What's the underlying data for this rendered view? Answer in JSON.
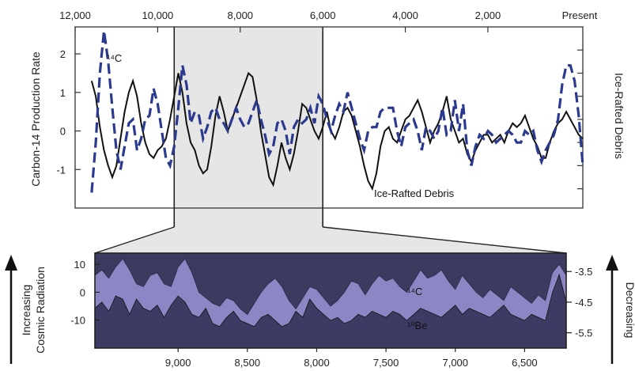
{
  "chart_data": [
    {
      "type": "line",
      "xlabel": "",
      "ylabel": "Carbon-14 Production Rate",
      "ylabel_right": "Ice-Rafted Debris",
      "x_ticks": [
        12000,
        10000,
        8000,
        6000,
        4000,
        2000
      ],
      "x_tick_labels": [
        "12,000",
        "10,000",
        "8,000",
        "6,000",
        "4,000",
        "2,000"
      ],
      "x_end_label": "Present",
      "x_range": [
        12000,
        -300
      ],
      "y_ticks": [
        2,
        1,
        0,
        -1
      ],
      "y_tick_labels": [
        "2",
        "1",
        "0",
        "-1"
      ],
      "ylim": [
        -2,
        2.7
      ],
      "series": [
        {
          "name": "¹⁴C",
          "style": "dashed",
          "color": "#2b3a8f",
          "x": [
            11600,
            11500,
            11400,
            11300,
            11200,
            11100,
            11000,
            10900,
            10800,
            10700,
            10600,
            10500,
            10400,
            10300,
            10200,
            10100,
            10000,
            9900,
            9800,
            9700,
            9600,
            9500,
            9400,
            9300,
            9200,
            9100,
            9000,
            8900,
            8800,
            8700,
            8600,
            8500,
            8400,
            8300,
            8200,
            8100,
            8000,
            7900,
            7800,
            7700,
            7600,
            7500,
            7400,
            7300,
            7200,
            7100,
            7000,
            6900,
            6800,
            6700,
            6600,
            6500,
            6400,
            6300,
            6200,
            6100,
            6000,
            5900,
            5800,
            5700,
            5600,
            5500,
            5400,
            5300,
            5200,
            5100,
            5000,
            4900,
            4800,
            4700,
            4600,
            4500,
            4400,
            4300,
            4200,
            4100,
            4000,
            3900,
            3800,
            3700,
            3600,
            3500,
            3400,
            3300,
            3200,
            3100,
            3000,
            2900,
            2800,
            2700,
            2600,
            2500,
            2400,
            2300,
            2200,
            2100,
            2000,
            1900,
            1800,
            1700,
            1600,
            1500,
            1400,
            1300,
            1200,
            1100,
            1000,
            900,
            800,
            700,
            600,
            500,
            400,
            300,
            200,
            100,
            0,
            -100,
            -200,
            -300
          ],
          "values": [
            -1.6,
            -0.3,
            1.5,
            2.6,
            1.8,
            0.6,
            -0.5,
            -1.0,
            -0.4,
            0.2,
            0.3,
            -0.5,
            -0.2,
            0.3,
            0.4,
            1.1,
            0.7,
            0.0,
            -0.7,
            -0.9,
            -0.4,
            0.6,
            1.7,
            1.2,
            0.2,
            0.5,
            0.4,
            -0.2,
            0.1,
            0.5,
            0.6,
            0.3,
            0.2,
            0.0,
            0.3,
            0.6,
            0.3,
            0.1,
            0.2,
            0.5,
            0.8,
            0.3,
            -0.1,
            -0.6,
            -0.4,
            0.2,
            0.3,
            0.0,
            -0.6,
            0.1,
            0.3,
            0.2,
            0.3,
            0.6,
            0.2,
            0.9,
            0.7,
            0.3,
            0.0,
            0.4,
            0.7,
            0.5,
            1.0,
            0.6,
            0.2,
            -0.2,
            -0.5,
            0.0,
            0.1,
            0.1,
            0.5,
            0.6,
            0.6,
            0.6,
            0.0,
            -0.4,
            0.1,
            0.2,
            0.3,
            0.0,
            -0.5,
            0.1,
            0.0,
            -0.2,
            0.0,
            0.6,
            -0.1,
            0.0,
            0.8,
            0.0,
            0.7,
            -0.5,
            -0.9,
            -0.4,
            -0.1,
            -0.2,
            0.0,
            -0.1,
            -0.3,
            -0.2,
            -0.1,
            0.0,
            -0.1,
            -0.3,
            -0.3,
            0.0,
            -0.1,
            0.0,
            -0.5,
            -0.8,
            -0.5,
            -0.3,
            -0.1,
            0.3,
            1.2,
            1.7,
            1.7,
            1.3,
            0.4,
            -0.9
          ]
        },
        {
          "name": "Ice-Rafted Debris",
          "style": "solid",
          "color": "#111111",
          "x": [
            11600,
            11500,
            11400,
            11300,
            11200,
            11100,
            11000,
            10900,
            10800,
            10700,
            10600,
            10500,
            10400,
            10300,
            10200,
            10100,
            10000,
            9900,
            9800,
            9700,
            9600,
            9500,
            9400,
            9300,
            9200,
            9100,
            9000,
            8900,
            8800,
            8700,
            8600,
            8500,
            8400,
            8300,
            8200,
            8100,
            8000,
            7900,
            7800,
            7700,
            7600,
            7500,
            7400,
            7300,
            7200,
            7100,
            7000,
            6900,
            6800,
            6700,
            6600,
            6500,
            6400,
            6300,
            6200,
            6100,
            6000,
            5900,
            5800,
            5700,
            5600,
            5500,
            5400,
            5300,
            5200,
            5100,
            5000,
            4900,
            4800,
            4700,
            4600,
            4500,
            4400,
            4300,
            4200,
            4100,
            4000,
            3900,
            3800,
            3700,
            3600,
            3500,
            3400,
            3300,
            3200,
            3100,
            3000,
            2900,
            2800,
            2700,
            2600,
            2500,
            2400,
            2300,
            2200,
            2100,
            2000,
            1900,
            1800,
            1700,
            1600,
            1500,
            1400,
            1300,
            1200,
            1100,
            1000,
            900,
            800,
            700,
            600,
            500,
            400,
            300,
            200,
            100,
            0,
            -100,
            -200,
            -300
          ],
          "values": [
            1.3,
            0.9,
            0.1,
            -0.5,
            -0.9,
            -1.2,
            -0.9,
            -0.2,
            0.5,
            1.0,
            1.3,
            0.9,
            0.2,
            -0.3,
            -0.6,
            -0.7,
            -0.5,
            -0.4,
            -0.2,
            0.3,
            0.9,
            1.5,
            1.0,
            0.2,
            -0.3,
            -0.5,
            -0.9,
            -1.1,
            -1.0,
            -0.4,
            0.4,
            0.9,
            0.5,
            0.0,
            0.3,
            0.6,
            0.9,
            1.2,
            1.5,
            1.4,
            0.8,
            0.0,
            -0.6,
            -1.2,
            -1.4,
            -0.9,
            -0.3,
            -0.7,
            -1.0,
            -0.6,
            0.0,
            0.7,
            0.6,
            0.3,
            0.0,
            -0.2,
            0.1,
            0.5,
            0.0,
            -0.2,
            0.1,
            0.5,
            0.6,
            0.4,
            0.0,
            -0.4,
            -0.9,
            -1.3,
            -1.5,
            -1.1,
            -0.4,
            0.0,
            0.1,
            -0.2,
            -0.3,
            0.0,
            0.3,
            0.4,
            0.6,
            0.8,
            0.5,
            0.1,
            -0.3,
            0.0,
            0.2,
            0.5,
            0.9,
            0.3,
            0.0,
            -0.3,
            -0.2,
            -0.6,
            -0.8,
            -0.5,
            -0.3,
            -0.1,
            -0.1,
            -0.3,
            -0.2,
            -0.1,
            -0.3,
            0.0,
            0.2,
            0.1,
            0.2,
            0.4,
            0.1,
            -0.2,
            -0.4,
            -0.7,
            -0.7,
            -0.3,
            0.0,
            0.2,
            0.3,
            0.5,
            0.3,
            0.1,
            -0.1,
            -0.2
          ]
        }
      ],
      "annotations": [
        "Ice-Rafted Debris"
      ]
    },
    {
      "type": "area",
      "ylabel_left": [
        "Increasing",
        "Cosmic Radiation"
      ],
      "ylabel_right": "Decreasing",
      "x_ticks": [
        9000,
        8500,
        8000,
        7500,
        7000,
        6500
      ],
      "x_tick_labels": [
        "9,000",
        "8,500",
        "8,000",
        "7,500",
        "7,000",
        "6,500"
      ],
      "x_range": [
        9600,
        6200
      ],
      "y_ticks": [
        10,
        0,
        -10
      ],
      "y_tick_labels": [
        "10",
        "0",
        "-10"
      ],
      "ylim": [
        -20,
        14
      ],
      "y_right_ticks": [
        -3.5,
        -4.5,
        -5.5
      ],
      "y_right_tick_labels": [
        "-3.5",
        "-4.5",
        "-5.5"
      ],
      "y_right_lim": [
        -6.0,
        -2.9
      ],
      "series": [
        {
          "name": "¹⁴C",
          "axis": "left",
          "color": "#8c87c4",
          "x": [
            9600,
            9550,
            9500,
            9450,
            9400,
            9350,
            9300,
            9250,
            9200,
            9150,
            9100,
            9050,
            9000,
            8950,
            8900,
            8850,
            8800,
            8750,
            8700,
            8650,
            8600,
            8550,
            8500,
            8450,
            8400,
            8350,
            8300,
            8250,
            8200,
            8150,
            8100,
            8050,
            8000,
            7950,
            7900,
            7850,
            7800,
            7750,
            7700,
            7650,
            7600,
            7550,
            7500,
            7450,
            7400,
            7350,
            7300,
            7250,
            7200,
            7150,
            7100,
            7050,
            7000,
            6950,
            6900,
            6850,
            6800,
            6750,
            6700,
            6650,
            6600,
            6550,
            6500,
            6450,
            6400,
            6350,
            6300,
            6250,
            6200
          ],
          "values": [
            6,
            8,
            5,
            9,
            12,
            8,
            3,
            2,
            6,
            7,
            3,
            2,
            9,
            12,
            7,
            0,
            -2,
            -4,
            -5,
            -2,
            -3,
            -6,
            -8,
            -4,
            0,
            3,
            5,
            2,
            -3,
            -6,
            -2,
            2,
            1,
            -2,
            -5,
            -3,
            0,
            4,
            3,
            -1,
            3,
            6,
            4,
            5,
            2,
            0,
            4,
            8,
            5,
            6,
            8,
            4,
            1,
            6,
            3,
            0,
            -2,
            1,
            -1,
            -3,
            2,
            0,
            -2,
            -4,
            -1,
            -3,
            7,
            10,
            6
          ]
        },
        {
          "name": "¹⁰Be",
          "axis": "right",
          "color": "#3d3b63",
          "x": [
            9600,
            9550,
            9500,
            9450,
            9400,
            9350,
            9300,
            9250,
            9200,
            9150,
            9100,
            9050,
            9000,
            8950,
            8900,
            8850,
            8800,
            8750,
            8700,
            8650,
            8600,
            8550,
            8500,
            8450,
            8400,
            8350,
            8300,
            8250,
            8200,
            8150,
            8100,
            8050,
            8000,
            7950,
            7900,
            7850,
            7800,
            7750,
            7700,
            7650,
            7600,
            7550,
            7500,
            7450,
            7400,
            7350,
            7300,
            7250,
            7200,
            7150,
            7100,
            7050,
            7000,
            6950,
            6900,
            6850,
            6800,
            6750,
            6700,
            6650,
            6600,
            6550,
            6500,
            6450,
            6400,
            6350,
            6300,
            6250,
            6200
          ],
          "values": [
            -4.7,
            -4.5,
            -4.8,
            -4.3,
            -4.4,
            -4.9,
            -4.4,
            -4.7,
            -4.8,
            -4.6,
            -5.0,
            -4.6,
            -4.3,
            -4.5,
            -4.9,
            -5.0,
            -4.7,
            -5.2,
            -5.3,
            -5.0,
            -4.8,
            -5.1,
            -5.2,
            -5.3,
            -5.0,
            -4.9,
            -5.1,
            -5.3,
            -5.2,
            -4.8,
            -5.0,
            -4.4,
            -4.7,
            -4.9,
            -5.1,
            -5.0,
            -5.2,
            -5.1,
            -4.9,
            -5.0,
            -4.8,
            -4.9,
            -5.0,
            -4.8,
            -4.9,
            -5.1,
            -4.9,
            -4.7,
            -4.8,
            -4.9,
            -5.0,
            -4.8,
            -4.6,
            -4.9,
            -4.7,
            -4.8,
            -4.9,
            -5.0,
            -4.8,
            -4.6,
            -4.9,
            -5.0,
            -5.1,
            -4.9,
            -5.0,
            -5.1,
            -4.2,
            -3.6,
            -4.5
          ]
        }
      ]
    }
  ]
}
